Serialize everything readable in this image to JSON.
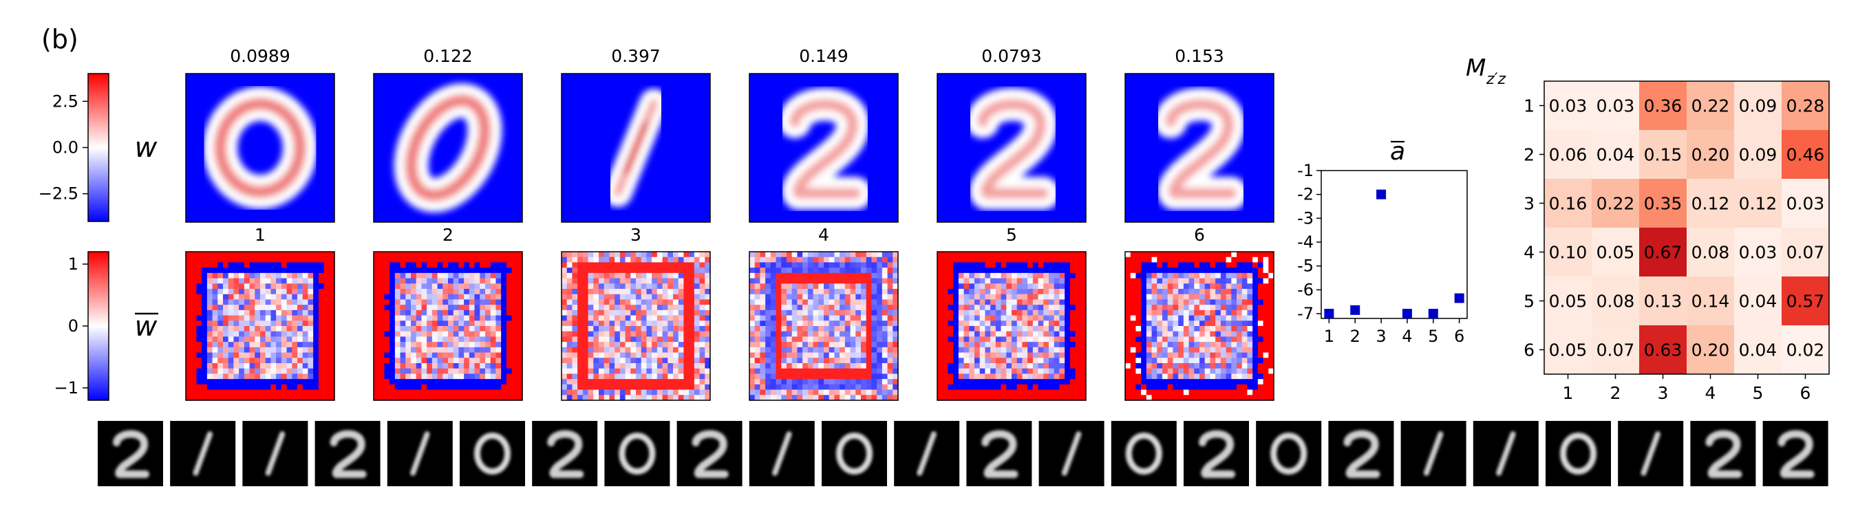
{
  "panel_label": "(b)",
  "row_labels": {
    "w": "w",
    "wbar": "w"
  },
  "colorbars": [
    {
      "name": "w",
      "ticks": [
        "2.5",
        "0.0",
        "−2.5"
      ],
      "tick_values": [
        2.5,
        0.0,
        -2.5
      ],
      "range": [
        -4,
        4
      ]
    },
    {
      "name": "wbar",
      "ticks": [
        "1",
        "0",
        "−1"
      ],
      "tick_values": [
        1,
        0,
        -1
      ],
      "range": [
        -1.2,
        1.2
      ]
    }
  ],
  "top_titles": [
    "0.0989",
    "0.122",
    "0.397",
    "0.149",
    "0.0793",
    "0.153"
  ],
  "column_numbers": [
    "1",
    "2",
    "3",
    "4",
    "5",
    "6"
  ],
  "digits_w": [
    "0",
    "0",
    "1",
    "2",
    "2",
    "2"
  ],
  "thumbnails": [
    "2",
    "1",
    "1",
    "2",
    "1",
    "0",
    "2",
    "0",
    "2",
    "1",
    "0",
    "1",
    "2",
    "1",
    "0",
    "2",
    "0",
    "2",
    "1",
    "1",
    "0",
    "1",
    "2",
    "2"
  ],
  "chart_data": [
    {
      "type": "scatter",
      "title": "a",
      "x": [
        1,
        2,
        3,
        4,
        5,
        6
      ],
      "y": [
        -7.0,
        -6.85,
        -2.0,
        -7.0,
        -7.0,
        -6.35
      ],
      "xticks": [
        "1",
        "2",
        "3",
        "4",
        "5",
        "6"
      ],
      "yticks": [
        "-1",
        "-2",
        "-3",
        "-4",
        "-5",
        "-6",
        "-7"
      ],
      "ylim": [
        -7.2,
        -1
      ],
      "xlim": [
        0.7,
        6.3
      ],
      "marker_color": "#0000cc"
    },
    {
      "type": "heatmap",
      "title": "M",
      "title_sub": "z′z",
      "rows": [
        "1",
        "2",
        "3",
        "4",
        "5",
        "6"
      ],
      "cols": [
        "1",
        "2",
        "3",
        "4",
        "5",
        "6"
      ],
      "values": [
        [
          0.03,
          0.03,
          0.36,
          0.22,
          0.09,
          0.28
        ],
        [
          0.06,
          0.04,
          0.15,
          0.2,
          0.09,
          0.46
        ],
        [
          0.16,
          0.22,
          0.35,
          0.12,
          0.12,
          0.03
        ],
        [
          0.1,
          0.05,
          0.67,
          0.08,
          0.03,
          0.07
        ],
        [
          0.05,
          0.08,
          0.13,
          0.14,
          0.04,
          0.57
        ],
        [
          0.05,
          0.07,
          0.63,
          0.2,
          0.04,
          0.02
        ]
      ],
      "labels": [
        [
          "0.03",
          "0.03",
          "0.36",
          "0.22",
          "0.09",
          "0.28"
        ],
        [
          "0.06",
          "0.04",
          "0.15",
          "0.20",
          "0.09",
          "0.46"
        ],
        [
          "0.16",
          "0.22",
          "0.35",
          "0.12",
          "0.12",
          "0.03"
        ],
        [
          "0.10",
          "0.05",
          "0.67",
          "0.08",
          "0.03",
          "0.07"
        ],
        [
          "0.05",
          "0.08",
          "0.13",
          "0.14",
          "0.04",
          "0.57"
        ],
        [
          "0.05",
          "0.07",
          "0.63",
          "0.20",
          "0.04",
          "0.02"
        ]
      ],
      "colormap": "Reds"
    }
  ]
}
